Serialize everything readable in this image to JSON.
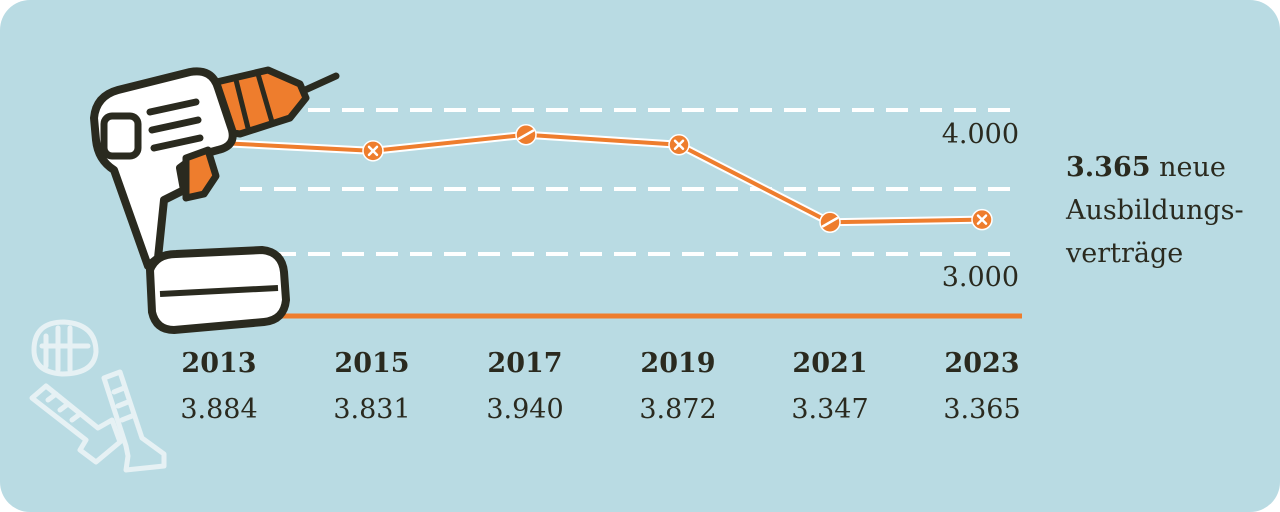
{
  "colors": {
    "background": "#b9dbe3",
    "line": "#ee7d2d",
    "text": "#2a2a1f",
    "gridline": "#ffffff",
    "icon_outline": "#2a2a1f",
    "icon_fill": "#ffffff"
  },
  "icons": [
    "drill-icon",
    "screws-icon"
  ],
  "headline": {
    "value": "3.365",
    "text": "neue",
    "line2": "Ausbildungs-",
    "line3": "verträge"
  },
  "chart_data": {
    "type": "line",
    "x": [
      "2013",
      "2015",
      "2017",
      "2019",
      "2021",
      "2023"
    ],
    "values": [
      3884,
      3831,
      3940,
      3872,
      3347,
      3365
    ],
    "value_labels": [
      "3.884",
      "3.831",
      "3.940",
      "3.872",
      "3.347",
      "3.365"
    ],
    "y_ticks": [
      {
        "value": 4000,
        "label": "4.000"
      },
      {
        "value": 3000,
        "label": "3.000"
      }
    ],
    "grid": true,
    "xlabel": "",
    "ylabel": ""
  }
}
